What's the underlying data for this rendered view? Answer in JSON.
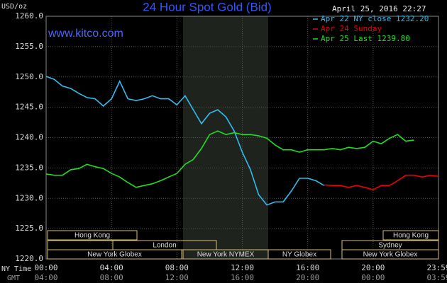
{
  "chart_data": {
    "type": "line",
    "title": "24 Hour Spot Gold (Bid)",
    "subtitle": "www.kitco.com",
    "timestamp": "April 25, 2016 22:27",
    "y_label": "USD/oz",
    "x_label": "NY Time",
    "x2_label": "GMT",
    "x": [
      0,
      0.5,
      1,
      1.5,
      2,
      2.5,
      3,
      3.5,
      4,
      4.5,
      5,
      5.5,
      6,
      6.5,
      7,
      7.5,
      8,
      8.5,
      9,
      9.5,
      10,
      10.5,
      11,
      11.5,
      12,
      12.5,
      13,
      13.5,
      14,
      14.5,
      15,
      15.5,
      16,
      16.5,
      17,
      17.5,
      18,
      18.5,
      19,
      19.5,
      20,
      20.5,
      21,
      21.5,
      22,
      22.5,
      23,
      23.5,
      24
    ],
    "series": [
      {
        "name": "Apr 22 NY close 1232.20",
        "color": "#33bbee",
        "values": [
          1250.1,
          1249.6,
          1248.5,
          1248.1,
          1247.3,
          1246.6,
          1246.4,
          1245.2,
          1246.4,
          1249.3,
          1246.4,
          1246.1,
          1246.4,
          1246.9,
          1246.4,
          1246.4,
          1245.4,
          1246.9,
          1244.6,
          1242.3,
          1244.0,
          1244.6,
          1243.4,
          1241.1,
          1237.6,
          1234.7,
          1230.6,
          1228.9,
          1229.4,
          1229.4,
          1231.2,
          1233.3,
          1233.3,
          1232.9,
          1232.1,
          null,
          null,
          null,
          null,
          null,
          null,
          null,
          null,
          null,
          null,
          null,
          null,
          null,
          null
        ]
      },
      {
        "name": "Apr 24 Sunday",
        "color": "#ee0000",
        "values": [
          null,
          null,
          null,
          null,
          null,
          null,
          null,
          null,
          null,
          null,
          null,
          null,
          null,
          null,
          null,
          null,
          null,
          null,
          null,
          null,
          null,
          null,
          null,
          null,
          null,
          null,
          null,
          null,
          null,
          null,
          null,
          null,
          null,
          null,
          1232.2,
          1232.1,
          1232.1,
          1231.8,
          1232.1,
          1231.8,
          1231.4,
          1232.1,
          1232.1,
          1232.9,
          1233.8,
          1233.8,
          1233.5,
          1233.8,
          1233.6
        ]
      },
      {
        "name": "Apr 25 Last 1239.80",
        "color": "#22dd22",
        "values": [
          1234.0,
          1233.8,
          1233.8,
          1234.7,
          1234.9,
          1235.6,
          1235.2,
          1234.9,
          1234.1,
          1233.5,
          1232.6,
          1231.8,
          1232.1,
          1232.4,
          1232.9,
          1233.5,
          1234.1,
          1235.6,
          1236.4,
          1238.2,
          1240.5,
          1241.1,
          1240.5,
          1240.8,
          1240.5,
          1240.5,
          1240.3,
          1239.9,
          1238.8,
          1238.0,
          1238.0,
          1237.6,
          1238.0,
          1238.0,
          1238.0,
          1238.2,
          1238.0,
          1238.4,
          1238.2,
          1238.4,
          1239.4,
          1239.0,
          1239.9,
          1240.5,
          1239.4,
          1239.6,
          null,
          null,
          null
        ]
      }
    ],
    "xlim": [
      0,
      24
    ],
    "xticks": [
      {
        "value": 0,
        "label": "00:00"
      },
      {
        "value": 4,
        "label": "04:00"
      },
      {
        "value": 8,
        "label": "08:00"
      },
      {
        "value": 12,
        "label": "12:00"
      },
      {
        "value": 16,
        "label": "16:00"
      },
      {
        "value": 20,
        "label": "20:00"
      },
      {
        "value": 24,
        "label": "23:59"
      }
    ],
    "x2ticks": [
      {
        "value": 0,
        "label": "04:00"
      },
      {
        "value": 4,
        "label": "08:00"
      },
      {
        "value": 8,
        "label": "12:00"
      },
      {
        "value": 12,
        "label": "16:00"
      },
      {
        "value": 16,
        "label": "20:00"
      },
      {
        "value": 20,
        "label": "00:00"
      },
      {
        "value": 24,
        "label": "03:59"
      }
    ],
    "ylim": [
      1220,
      1260
    ],
    "yticks": [
      {
        "value": 1220,
        "label": "1220.0"
      },
      {
        "value": 1225,
        "label": "1225.0"
      },
      {
        "value": 1230,
        "label": "1230.0"
      },
      {
        "value": 1235,
        "label": "1235.0"
      },
      {
        "value": 1240,
        "label": "1240.0"
      },
      {
        "value": 1245,
        "label": "1245.0"
      },
      {
        "value": 1250,
        "label": "1250.0"
      },
      {
        "value": 1255,
        "label": "1255.0"
      },
      {
        "value": 1260,
        "label": "1260.0"
      }
    ],
    "grid": true,
    "sessions": [
      "Hong Kong",
      "Hong Kong",
      "London",
      "Sydney",
      "New York Globex",
      "New York NYMEX",
      "NY Globex",
      "New York Globex"
    ]
  }
}
